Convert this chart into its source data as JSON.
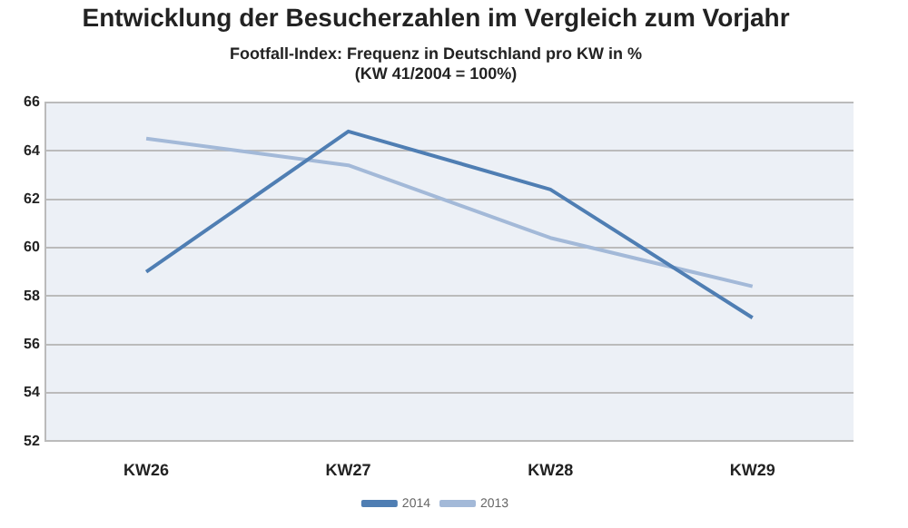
{
  "chart_data": {
    "type": "line",
    "title": "Entwicklung der Besucherzahlen im Vergleich zum Vorjahr",
    "subtitle": "Footfall-Index: Frequenz in Deutschland pro KW in %\n(KW 41/2004 = 100%)",
    "categories": [
      "KW26",
      "KW27",
      "KW28",
      "KW29"
    ],
    "series": [
      {
        "name": "2014",
        "color": "#4f7eb3",
        "values": [
          59.0,
          64.8,
          62.4,
          57.1
        ]
      },
      {
        "name": "2013",
        "color": "#a3b9d8",
        "values": [
          64.5,
          63.4,
          60.4,
          58.4
        ]
      }
    ],
    "ylim": [
      52,
      66
    ],
    "yticks": [
      52,
      54,
      56,
      58,
      60,
      62,
      64,
      66
    ],
    "grid": "y",
    "legend": "bottom",
    "marker": "none",
    "line_style": "solid"
  }
}
